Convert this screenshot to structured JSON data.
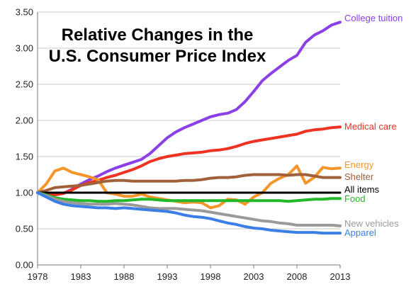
{
  "chart_data": {
    "type": "line",
    "title_lines": [
      "Relative Changes in the",
      "U.S. Consumer Price Index"
    ],
    "xlabel": "",
    "ylabel": "",
    "xlim": [
      1978,
      2013
    ],
    "ylim": [
      0,
      3.5
    ],
    "x_ticks": [
      1978,
      1983,
      1988,
      1993,
      1998,
      2003,
      2008,
      2013
    ],
    "y_ticks": [
      "0.00",
      "0.50",
      "1.00",
      "1.50",
      "2.00",
      "2.50",
      "3.00",
      "3.50"
    ],
    "grid": "horizontal",
    "x": [
      1978,
      1979,
      1980,
      1981,
      1982,
      1983,
      1984,
      1985,
      1986,
      1987,
      1988,
      1989,
      1990,
      1991,
      1992,
      1993,
      1994,
      1995,
      1996,
      1997,
      1998,
      1999,
      2000,
      2001,
      2002,
      2003,
      2004,
      2005,
      2006,
      2007,
      2008,
      2009,
      2010,
      2011,
      2012,
      2013
    ],
    "series": [
      {
        "name": "College tuition",
        "color": "#8B3FE6",
        "values": [
          1.0,
          0.98,
          0.97,
          0.99,
          1.05,
          1.12,
          1.18,
          1.23,
          1.29,
          1.34,
          1.38,
          1.42,
          1.46,
          1.54,
          1.65,
          1.76,
          1.84,
          1.9,
          1.95,
          2.0,
          2.05,
          2.08,
          2.1,
          2.15,
          2.26,
          2.4,
          2.55,
          2.65,
          2.74,
          2.83,
          2.9,
          3.08,
          3.18,
          3.24,
          3.32,
          3.36
        ]
      },
      {
        "name": "Medical care",
        "color": "#EE3322",
        "values": [
          1.0,
          0.98,
          0.97,
          0.99,
          1.04,
          1.1,
          1.14,
          1.17,
          1.21,
          1.24,
          1.28,
          1.32,
          1.37,
          1.43,
          1.47,
          1.5,
          1.52,
          1.54,
          1.55,
          1.56,
          1.58,
          1.59,
          1.61,
          1.64,
          1.68,
          1.71,
          1.73,
          1.75,
          1.77,
          1.79,
          1.81,
          1.85,
          1.87,
          1.88,
          1.9,
          1.91
        ]
      },
      {
        "name": "Energy",
        "color": "#F5962A",
        "values": [
          1.0,
          1.12,
          1.3,
          1.34,
          1.28,
          1.25,
          1.22,
          1.18,
          1.0,
          0.98,
          0.95,
          0.95,
          0.98,
          0.94,
          0.92,
          0.9,
          0.88,
          0.86,
          0.87,
          0.86,
          0.79,
          0.82,
          0.91,
          0.9,
          0.84,
          0.94,
          1.0,
          1.13,
          1.2,
          1.25,
          1.37,
          1.13,
          1.21,
          1.35,
          1.33,
          1.34
        ]
      },
      {
        "name": "Shelter",
        "color": "#A0603A",
        "values": [
          1.0,
          1.03,
          1.07,
          1.08,
          1.09,
          1.1,
          1.12,
          1.14,
          1.16,
          1.17,
          1.17,
          1.16,
          1.16,
          1.16,
          1.16,
          1.16,
          1.16,
          1.17,
          1.17,
          1.18,
          1.2,
          1.21,
          1.21,
          1.22,
          1.24,
          1.25,
          1.25,
          1.25,
          1.25,
          1.24,
          1.25,
          1.25,
          1.23,
          1.21,
          1.21,
          1.21
        ]
      },
      {
        "name": "All items",
        "color": "#000000",
        "values": [
          1.0,
          1.0,
          1.0,
          1.0,
          1.0,
          1.0,
          1.0,
          1.0,
          1.0,
          1.0,
          1.0,
          1.0,
          1.0,
          1.0,
          1.0,
          1.0,
          1.0,
          1.0,
          1.0,
          1.0,
          1.0,
          1.0,
          1.0,
          1.0,
          1.0,
          1.0,
          1.0,
          1.0,
          1.0,
          1.0,
          1.0,
          1.0,
          1.0,
          1.0,
          1.0,
          1.0
        ]
      },
      {
        "name": "Food",
        "color": "#22B829",
        "values": [
          1.0,
          0.97,
          0.93,
          0.91,
          0.9,
          0.89,
          0.89,
          0.88,
          0.88,
          0.89,
          0.89,
          0.9,
          0.91,
          0.91,
          0.9,
          0.89,
          0.89,
          0.89,
          0.89,
          0.89,
          0.89,
          0.89,
          0.89,
          0.89,
          0.89,
          0.89,
          0.89,
          0.89,
          0.89,
          0.88,
          0.89,
          0.9,
          0.91,
          0.91,
          0.92,
          0.92
        ]
      },
      {
        "name": "New vehicles",
        "color": "#9A9A9A",
        "values": [
          1.0,
          0.96,
          0.91,
          0.88,
          0.86,
          0.85,
          0.84,
          0.84,
          0.84,
          0.85,
          0.84,
          0.83,
          0.81,
          0.79,
          0.78,
          0.78,
          0.78,
          0.77,
          0.76,
          0.75,
          0.73,
          0.71,
          0.69,
          0.67,
          0.65,
          0.63,
          0.61,
          0.6,
          0.58,
          0.57,
          0.55,
          0.55,
          0.55,
          0.55,
          0.55,
          0.54
        ]
      },
      {
        "name": "Apparel",
        "color": "#3B7FE6",
        "values": [
          1.0,
          0.94,
          0.88,
          0.84,
          0.82,
          0.81,
          0.8,
          0.79,
          0.79,
          0.78,
          0.79,
          0.78,
          0.77,
          0.76,
          0.75,
          0.74,
          0.72,
          0.69,
          0.67,
          0.66,
          0.64,
          0.61,
          0.58,
          0.56,
          0.53,
          0.51,
          0.5,
          0.48,
          0.47,
          0.46,
          0.45,
          0.45,
          0.45,
          0.44,
          0.44,
          0.44
        ]
      }
    ]
  }
}
